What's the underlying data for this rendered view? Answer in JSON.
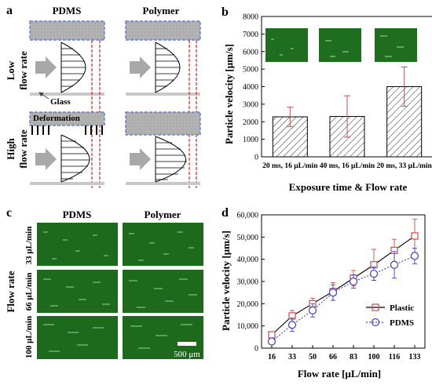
{
  "panel_a": {
    "letter": "a",
    "col_pdms": "PDMS",
    "col_polymer": "Polymer",
    "row_low_1": "Low",
    "row_low_2": "flow rate",
    "row_high_1": "High",
    "row_high_2": "flow rate",
    "glass_label": "Glass",
    "deformation_label": "Deformation"
  },
  "panel_c": {
    "letter": "c",
    "col_pdms": "PDMS",
    "col_polymer": "Polymer",
    "side_label": "Flow rate",
    "rows": [
      "33 μL/min",
      "66 μL/min",
      "100 μL/min"
    ],
    "scale_bar": "500 μm"
  },
  "colors": {
    "gray_block": "#b8b8b8",
    "dashed_blue": "#4a6fd8",
    "dashed_red": "#e02020",
    "arrow_gray": "#a8a8a8",
    "micrograph_green": "#1f6e1f",
    "plastic_red": "#d04a4a",
    "pdms_blue": "#4040d0"
  },
  "chart_data": [
    {
      "panel": "b",
      "type": "bar",
      "categories": [
        "20 ms, 16 μL/min",
        "40 ms, 16 μL/min",
        "20 ms, 33 μL/min"
      ],
      "values": [
        2280,
        2300,
        4000
      ],
      "errors": [
        550,
        1180,
        1120
      ],
      "xlabel": "Exposure time & Flow rate",
      "ylabel": "Particle velocity [μm/s]",
      "ylim": [
        0,
        8000
      ],
      "yticks": [
        "0",
        "1000",
        "2000",
        "3000",
        "4000",
        "5000",
        "6000",
        "7000",
        "8000"
      ],
      "grid": false
    },
    {
      "panel": "d",
      "type": "line",
      "x": [
        "16",
        "33",
        "50",
        "66",
        "83",
        "100",
        "116",
        "133"
      ],
      "series": [
        {
          "name": "Plastic",
          "values": [
            6000,
            14500,
            20000,
            25500,
            31500,
            37500,
            44000,
            50500
          ],
          "errors": [
            1200,
            2500,
            2500,
            4000,
            3500,
            7000,
            5000,
            7500
          ]
        },
        {
          "name": "PDMS",
          "values": [
            3000,
            10500,
            17000,
            25000,
            30000,
            33500,
            37500,
            41500
          ],
          "errors": [
            1000,
            3000,
            3000,
            3500,
            3000,
            3000,
            6000,
            3500
          ]
        }
      ],
      "xlabel": "Flow rate [μL/min]",
      "ylabel": "Particle velocity [μm/s]",
      "ylim": [
        0,
        60000
      ],
      "yticks": [
        "0",
        "10,000",
        "20,000",
        "30,000",
        "40,000",
        "50,000",
        "60,000"
      ],
      "legend": "center-right",
      "grid": false
    }
  ]
}
